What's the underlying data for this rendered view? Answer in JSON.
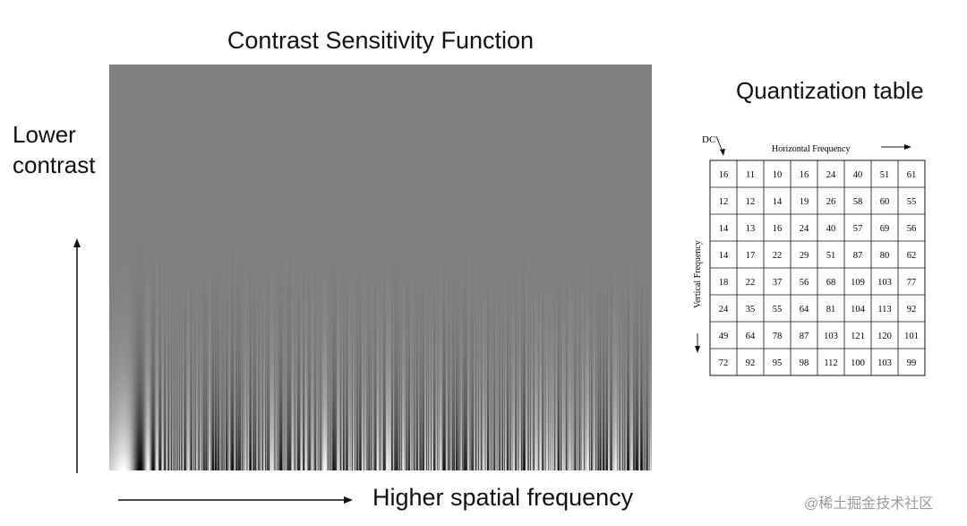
{
  "csf": {
    "title": "Contrast Sensitivity Function",
    "y_axis_label_line1": "Lower",
    "y_axis_label_line2": "contrast",
    "x_axis_label": "Higher spatial frequency"
  },
  "quantization": {
    "title": "Quantization table",
    "dc_label": "DC",
    "horizontal_label": "Horizontal Frequency",
    "vertical_label": "Vertical Frequency",
    "rows": [
      [
        16,
        11,
        10,
        16,
        24,
        40,
        51,
        61
      ],
      [
        12,
        12,
        14,
        19,
        26,
        58,
        60,
        55
      ],
      [
        14,
        13,
        16,
        24,
        40,
        57,
        69,
        56
      ],
      [
        14,
        17,
        22,
        29,
        51,
        87,
        80,
        62
      ],
      [
        18,
        22,
        37,
        56,
        68,
        109,
        103,
        77
      ],
      [
        24,
        35,
        55,
        64,
        81,
        104,
        113,
        92
      ],
      [
        49,
        64,
        78,
        87,
        103,
        121,
        120,
        101
      ],
      [
        72,
        92,
        95,
        98,
        112,
        100,
        103,
        99
      ]
    ]
  },
  "watermark": "@稀土掘金技术社区"
}
